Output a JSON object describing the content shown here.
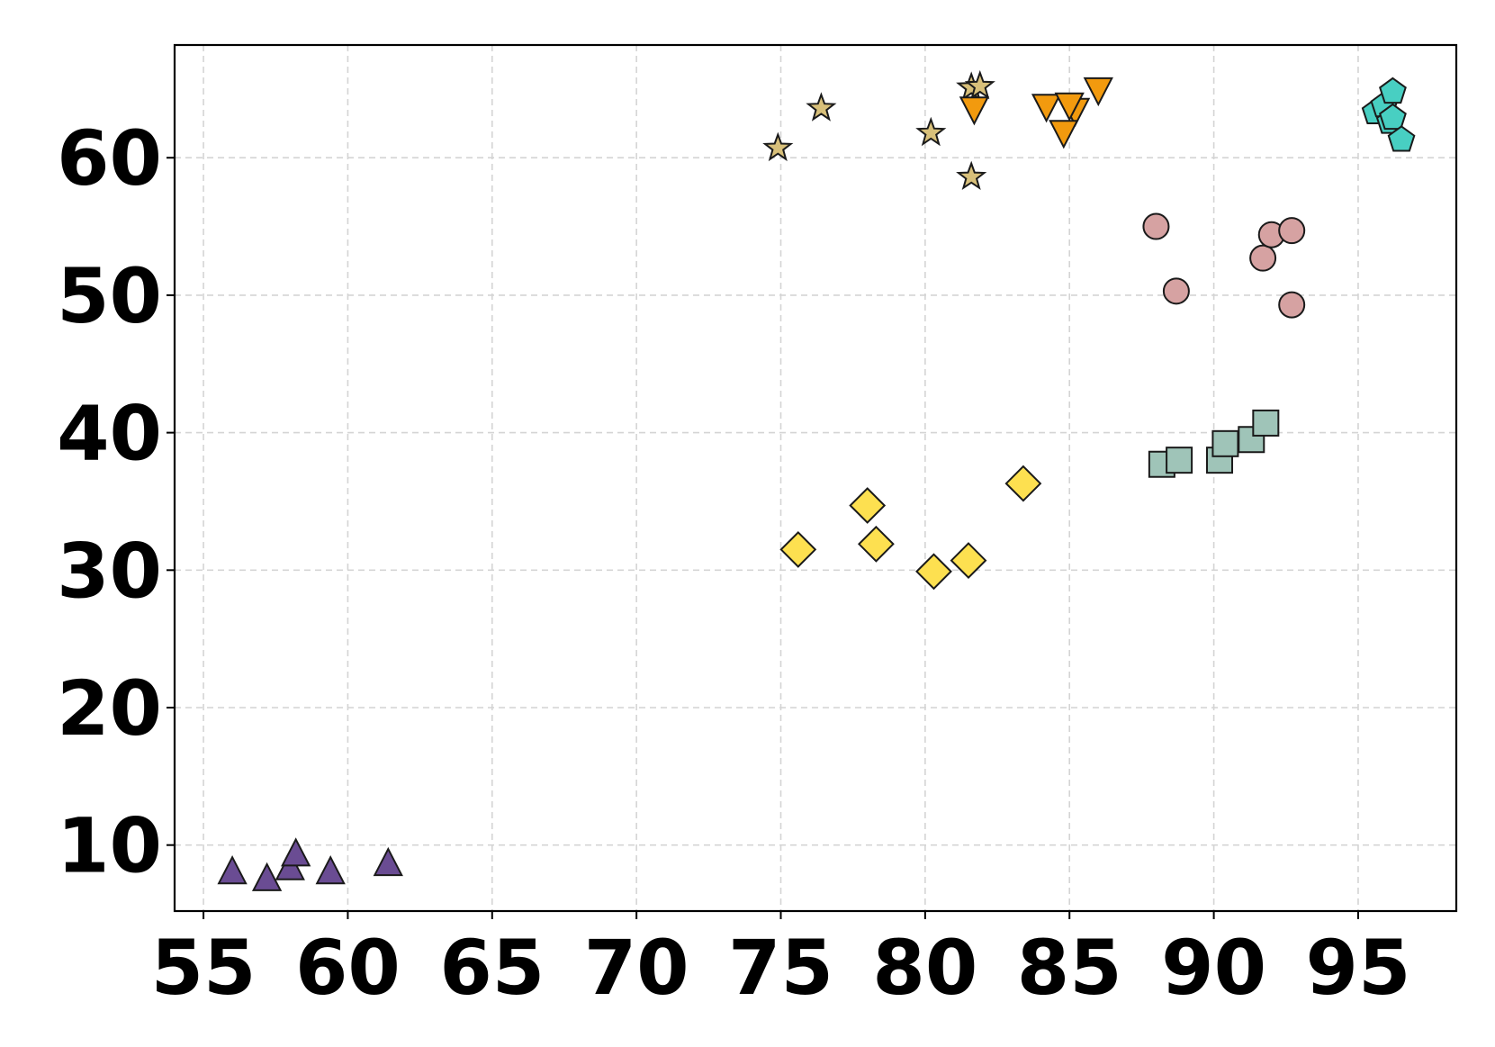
{
  "chart_data": {
    "type": "scatter",
    "title": "",
    "xlabel": "",
    "ylabel": "",
    "xlim": [
      54,
      98.4
    ],
    "ylim": [
      5.2,
      68.2
    ],
    "xticks": [
      55,
      60,
      65,
      70,
      75,
      80,
      85,
      90,
      95
    ],
    "yticks": [
      10,
      20,
      30,
      40,
      50,
      60
    ],
    "grid": true,
    "legend": "none",
    "series": [
      {
        "marker": "triangle-up",
        "color": "#6a4c93",
        "points": [
          {
            "x": 56.0,
            "y": 8.0
          },
          {
            "x": 57.2,
            "y": 7.5
          },
          {
            "x": 58.0,
            "y": 8.3
          },
          {
            "x": 58.2,
            "y": 9.3
          },
          {
            "x": 59.4,
            "y": 8.0
          },
          {
            "x": 61.4,
            "y": 8.6
          }
        ]
      },
      {
        "marker": "star",
        "color": "#d8c07a",
        "points": [
          {
            "x": 74.9,
            "y": 60.7
          },
          {
            "x": 76.4,
            "y": 63.6
          },
          {
            "x": 80.2,
            "y": 61.8
          },
          {
            "x": 81.6,
            "y": 65.1
          },
          {
            "x": 81.9,
            "y": 65.2
          },
          {
            "x": 81.6,
            "y": 58.6
          }
        ]
      },
      {
        "marker": "triangle-down",
        "color": "#f29a0e",
        "points": [
          {
            "x": 81.7,
            "y": 63.6
          },
          {
            "x": 84.2,
            "y": 63.8
          },
          {
            "x": 85.2,
            "y": 63.5
          },
          {
            "x": 85.0,
            "y": 63.9
          },
          {
            "x": 84.8,
            "y": 61.9
          },
          {
            "x": 86.0,
            "y": 65.0
          }
        ]
      },
      {
        "marker": "pentagon",
        "color": "#48cfc2",
        "points": [
          {
            "x": 95.6,
            "y": 63.3
          },
          {
            "x": 95.9,
            "y": 63.8
          },
          {
            "x": 96.1,
            "y": 62.6
          },
          {
            "x": 96.2,
            "y": 62.9
          },
          {
            "x": 96.2,
            "y": 64.8
          },
          {
            "x": 96.5,
            "y": 61.3
          }
        ]
      },
      {
        "marker": "circle",
        "color": "#d6a2a2",
        "points": [
          {
            "x": 88.0,
            "y": 55.0
          },
          {
            "x": 88.7,
            "y": 50.3
          },
          {
            "x": 91.7,
            "y": 52.7
          },
          {
            "x": 92.0,
            "y": 54.4
          },
          {
            "x": 92.7,
            "y": 54.7
          },
          {
            "x": 92.7,
            "y": 49.3
          }
        ]
      },
      {
        "marker": "square",
        "color": "#9fc4b8",
        "points": [
          {
            "x": 88.2,
            "y": 37.7
          },
          {
            "x": 88.8,
            "y": 38.0
          },
          {
            "x": 90.2,
            "y": 38.0
          },
          {
            "x": 90.4,
            "y": 39.2
          },
          {
            "x": 91.3,
            "y": 39.5
          },
          {
            "x": 91.8,
            "y": 40.7
          }
        ]
      },
      {
        "marker": "diamond",
        "color": "#fde050",
        "points": [
          {
            "x": 75.6,
            "y": 31.5
          },
          {
            "x": 78.0,
            "y": 34.7
          },
          {
            "x": 78.3,
            "y": 31.9
          },
          {
            "x": 80.3,
            "y": 29.9
          },
          {
            "x": 81.5,
            "y": 30.7
          },
          {
            "x": 83.4,
            "y": 36.3
          }
        ]
      }
    ]
  }
}
